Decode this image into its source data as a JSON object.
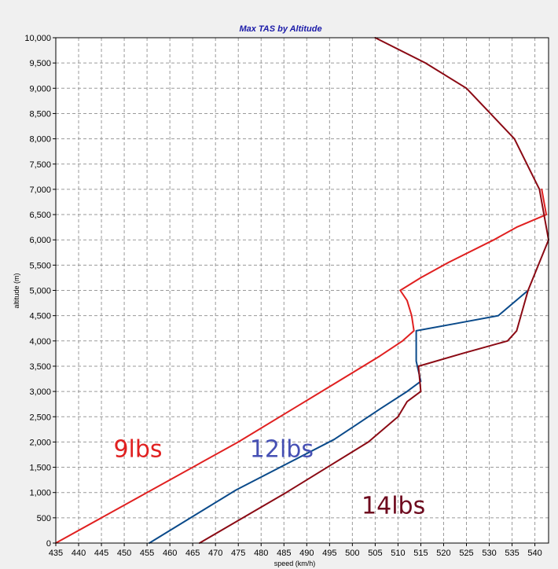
{
  "chart_data": {
    "type": "line",
    "title": "Max TAS by Altitude",
    "xlabel": "speed (km/h)",
    "ylabel": "altitude (m)",
    "xlim": [
      435,
      543
    ],
    "ylim": [
      0,
      10000
    ],
    "x_ticks": [
      "435",
      "440",
      "445",
      "450",
      "455",
      "460",
      "465",
      "470",
      "475",
      "480",
      "485",
      "490",
      "495",
      "500",
      "505",
      "510",
      "515",
      "520",
      "525",
      "530",
      "535",
      "540"
    ],
    "y_ticks": [
      "0",
      "500",
      "1,000",
      "1,500",
      "2,000",
      "2,500",
      "3,000",
      "3,500",
      "4,000",
      "4,500",
      "5,000",
      "5,500",
      "6,000",
      "6,500",
      "7,000",
      "7,500",
      "8,000",
      "8,500",
      "9,000",
      "9,500",
      "10,000"
    ],
    "grid": true,
    "series": [
      {
        "name": "9lbs",
        "color": "#e02020",
        "points": [
          [
            435,
            0
          ],
          [
            475,
            2000
          ],
          [
            496,
            3150
          ],
          [
            506,
            3700
          ],
          [
            511,
            4000
          ],
          [
            513.5,
            4200
          ],
          [
            513,
            4500
          ],
          [
            512,
            4800
          ],
          [
            510.5,
            5000
          ],
          [
            515,
            5250
          ],
          [
            521,
            5550
          ],
          [
            531,
            6000
          ],
          [
            536,
            6250
          ],
          [
            542.5,
            6500
          ],
          [
            542,
            6750
          ],
          [
            541.5,
            7000
          ]
        ]
      },
      {
        "name": "12lbs",
        "color": "#0a4a8a",
        "points": [
          [
            455.5,
            0
          ],
          [
            474.5,
            1050
          ],
          [
            496,
            2050
          ],
          [
            501,
            2350
          ],
          [
            506,
            2650
          ],
          [
            512,
            3000
          ],
          [
            515,
            3200
          ],
          [
            514,
            3600
          ],
          [
            514,
            3900
          ],
          [
            514,
            4200
          ],
          [
            523,
            4350
          ],
          [
            532,
            4500
          ],
          [
            538.5,
            5000
          ]
        ]
      },
      {
        "name": "14lbs",
        "color": "#8b0a14",
        "points": [
          [
            466.5,
            0
          ],
          [
            485.5,
            1000
          ],
          [
            503.5,
            2000
          ],
          [
            510,
            2500
          ],
          [
            512,
            2800
          ],
          [
            515,
            3000
          ],
          [
            514.5,
            3500
          ],
          [
            524,
            3750
          ],
          [
            534,
            4000
          ],
          [
            536,
            4200
          ],
          [
            538.5,
            5000
          ],
          [
            543,
            6000
          ],
          [
            542,
            6500
          ],
          [
            541,
            7000
          ],
          [
            535.5,
            8000
          ],
          [
            525,
            9000
          ],
          [
            516,
            9500
          ],
          [
            505,
            10000
          ]
        ]
      }
    ],
    "annotations": [
      {
        "text": "9lbs",
        "x": 453,
        "y": 1700,
        "color": "#e02020"
      },
      {
        "text": "12lbs",
        "x": 484.5,
        "y": 1700,
        "color": "#4650b4"
      },
      {
        "text": "14lbs",
        "x": 509,
        "y": 580,
        "color": "#6e0a1e"
      }
    ]
  }
}
